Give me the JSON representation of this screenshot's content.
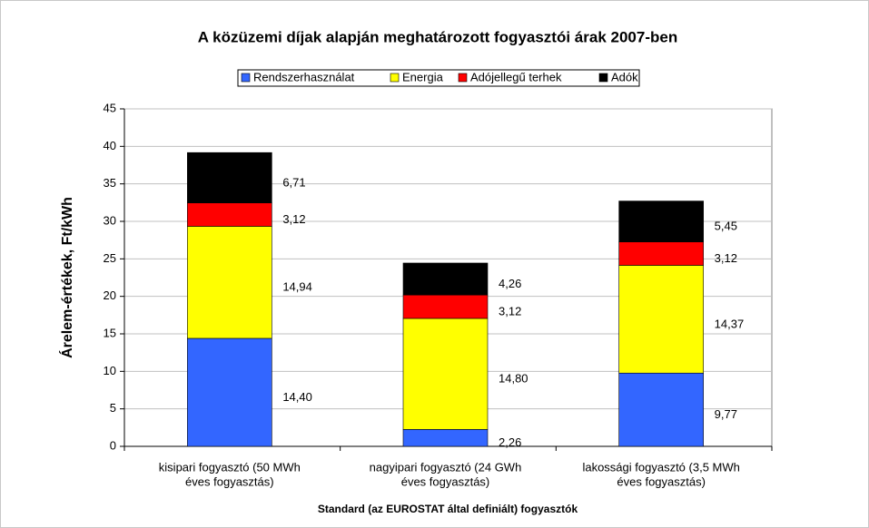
{
  "chart_data": {
    "type": "stacked_bar",
    "title": "A közüzemi díjak alapján meghatározott fogyasztói árak 2007-ben",
    "y_label": "Árelem-értékek, Ft/kWh",
    "x_label": "Standard (az EUROSTAT által definiált) fogyasztók",
    "categories": [
      [
        "kisipari fogyasztó (50 MWh",
        "éves fogyasztás)"
      ],
      [
        "nagyipari fogyasztó (24 GWh",
        "éves fogyasztás)"
      ],
      [
        "lakossági fogyasztó (3,5 MWh",
        "éves fogyasztás)"
      ]
    ],
    "series": [
      {
        "name": "Rendszerhasználat",
        "color": "#3366ff",
        "values": [
          14.4,
          2.26,
          9.77
        ],
        "value_labels": [
          "14,40",
          "2,26",
          "9,77"
        ]
      },
      {
        "name": "Energia",
        "color": "#ffff00",
        "values": [
          14.94,
          14.8,
          14.37
        ],
        "value_labels": [
          "14,94",
          "14,80",
          "14,37"
        ]
      },
      {
        "name": "Adójellegű terhek",
        "color": "#ff0000",
        "values": [
          3.12,
          3.12,
          3.12
        ],
        "value_labels": [
          "3,12",
          "3,12",
          "3,12"
        ]
      },
      {
        "name": "Adók",
        "color": "#000000",
        "values": [
          6.71,
          4.26,
          5.45
        ],
        "value_labels": [
          "6,71",
          "4,26",
          "5,45"
        ]
      }
    ],
    "ylim": [
      0,
      45
    ],
    "yticks": [
      0,
      5,
      10,
      15,
      20,
      25,
      30,
      35,
      40,
      45
    ],
    "grid": true,
    "legend": "top"
  }
}
